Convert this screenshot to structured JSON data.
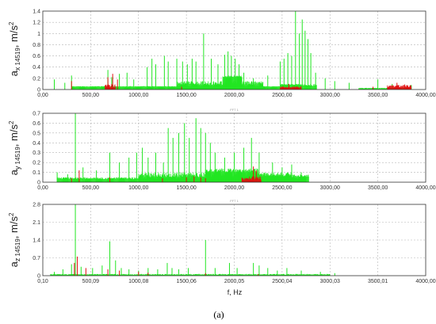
{
  "figure_caption": "(a)",
  "x_axis_label": "f, Hz",
  "colors": {
    "green": "#22e622",
    "red": "#e01010",
    "grid": "#b5b5b5",
    "frame": "#333333"
  },
  "chart_data": [
    {
      "type": "bar",
      "panel_label": "",
      "ylabel": {
        "base": "a",
        "sub1": "x",
        "sub2": "14519",
        "unit": ", m/s",
        "sup": "2"
      },
      "xlim": [
        0,
        4000
      ],
      "ylim": [
        0,
        1.4
      ],
      "xticks": [
        "0,00",
        "500,00",
        "1000,00",
        "1500,00",
        "2000,00",
        "2500,00",
        "3000,00",
        "3500,00",
        "4000,00"
      ],
      "yticks": [
        "0",
        "0.2",
        "0.4",
        "0.6",
        "0.8",
        "1",
        "1.2",
        "1.4"
      ],
      "series": [
        {
          "color": "green",
          "bands": [
            [
              300,
              2500,
              0.05,
              0.06
            ],
            [
              1400,
              2300,
              0.08,
              0.15
            ],
            [
              1880,
              2080,
              0.22,
              0.25
            ],
            [
              2480,
              2700,
              0.08,
              0.1
            ],
            [
              2700,
              2860,
              0.06,
              0.1
            ],
            [
              3300,
              3800,
              0.02,
              0.03
            ]
          ],
          "peaks": [
            [
              120,
              0.18
            ],
            [
              230,
              0.12
            ],
            [
              300,
              0.25
            ],
            [
              680,
              0.35
            ],
            [
              720,
              0.22
            ],
            [
              800,
              0.28
            ],
            [
              880,
              0.3
            ],
            [
              950,
              0.18
            ],
            [
              1090,
              0.4
            ],
            [
              1140,
              0.55
            ],
            [
              1180,
              0.45
            ],
            [
              1270,
              0.6
            ],
            [
              1310,
              0.5
            ],
            [
              1400,
              0.55
            ],
            [
              1460,
              0.5
            ],
            [
              1510,
              0.45
            ],
            [
              1560,
              0.55
            ],
            [
              1600,
              0.5
            ],
            [
              1680,
              1.0
            ],
            [
              1760,
              0.55
            ],
            [
              1830,
              0.45
            ],
            [
              1900,
              0.62
            ],
            [
              1935,
              0.68
            ],
            [
              1970,
              0.6
            ],
            [
              2010,
              0.55
            ],
            [
              2050,
              0.45
            ],
            [
              2100,
              0.3
            ],
            [
              2200,
              0.2
            ],
            [
              2350,
              0.25
            ],
            [
              2480,
              0.5
            ],
            [
              2520,
              0.55
            ],
            [
              2560,
              0.65
            ],
            [
              2600,
              0.6
            ],
            [
              2640,
              1.4
            ],
            [
              2680,
              1.0
            ],
            [
              2710,
              1.25
            ],
            [
              2740,
              1.05
            ],
            [
              2770,
              0.9
            ],
            [
              2800,
              0.65
            ],
            [
              2850,
              0.3
            ],
            [
              2950,
              0.2
            ],
            [
              3050,
              0.15
            ],
            [
              3200,
              0.12
            ],
            [
              3500,
              0.18
            ],
            [
              3650,
              0.1
            ],
            [
              3850,
              0.08
            ]
          ]
        },
        {
          "color": "red",
          "bands": [
            [
              650,
              760,
              0.02,
              0.1
            ],
            [
              2480,
              2700,
              0.02,
              0.06
            ],
            [
              3600,
              3850,
              0.04,
              0.08
            ]
          ],
          "peaks": [
            [
              300,
              0.15
            ],
            [
              680,
              0.22
            ],
            [
              730,
              0.28
            ],
            [
              780,
              0.18
            ],
            [
              1450,
              0.05
            ],
            [
              2570,
              0.1
            ],
            [
              3450,
              0.05
            ],
            [
              3700,
              0.12
            ],
            [
              3780,
              0.09
            ]
          ]
        }
      ]
    },
    {
      "type": "bar",
      "panel_label": "FFT 1",
      "ylabel": {
        "base": "a",
        "sub1": "y",
        "sub2": "14519",
        "unit": ", m/s",
        "sup": "2"
      },
      "xlim": [
        0,
        4000
      ],
      "ylim": [
        0,
        0.7
      ],
      "xticks": [
        "0,00",
        "500,00",
        "1000,00",
        "1500,00",
        "2000,00",
        "2500,00",
        "3000,00",
        "3500,00",
        "4000,00"
      ],
      "yticks": [
        "0",
        "0.1",
        "0.2",
        "0.3",
        "0.4",
        "0.5",
        "0.6",
        "0.7"
      ],
      "series": [
        {
          "color": "green",
          "bands": [
            [
              150,
              2750,
              0.03,
              0.05
            ],
            [
              1000,
              2600,
              0.05,
              0.1
            ],
            [
              1700,
              2250,
              0.1,
              0.14
            ],
            [
              2250,
              2780,
              0.05,
              0.08
            ]
          ],
          "peaks": [
            [
              150,
              0.1
            ],
            [
              260,
              0.08
            ],
            [
              340,
              0.7
            ],
            [
              420,
              0.15
            ],
            [
              560,
              0.12
            ],
            [
              700,
              0.3
            ],
            [
              800,
              0.2
            ],
            [
              900,
              0.25
            ],
            [
              980,
              0.3
            ],
            [
              1040,
              0.35
            ],
            [
              1100,
              0.25
            ],
            [
              1180,
              0.3
            ],
            [
              1260,
              0.2
            ],
            [
              1310,
              0.55
            ],
            [
              1360,
              0.45
            ],
            [
              1420,
              0.5
            ],
            [
              1480,
              0.6
            ],
            [
              1530,
              0.45
            ],
            [
              1600,
              0.65
            ],
            [
              1650,
              0.55
            ],
            [
              1700,
              0.5
            ],
            [
              1750,
              0.4
            ],
            [
              1800,
              0.3
            ],
            [
              1900,
              0.25
            ],
            [
              2000,
              0.3
            ],
            [
              2100,
              0.35
            ],
            [
              2180,
              0.45
            ],
            [
              2260,
              0.3
            ],
            [
              2400,
              0.2
            ],
            [
              2500,
              0.15
            ],
            [
              2600,
              0.18
            ],
            [
              2700,
              0.1
            ]
          ]
        },
        {
          "color": "red",
          "bands": [
            [
              2080,
              2280,
              0.02,
              0.06
            ]
          ],
          "peaks": [
            [
              300,
              0.04
            ],
            [
              380,
              0.12
            ],
            [
              700,
              0.05
            ],
            [
              1250,
              0.04
            ],
            [
              1500,
              0.05
            ],
            [
              1580,
              0.06
            ],
            [
              1650,
              0.05
            ],
            [
              1700,
              0.04
            ],
            [
              2200,
              0.16
            ],
            [
              2230,
              0.12
            ]
          ]
        }
      ]
    },
    {
      "type": "bar",
      "panel_label": "FFT 1",
      "ylabel": {
        "base": "a",
        "sub1": "z",
        "sub2": "14519",
        "unit": ", m/s",
        "sup": "2"
      },
      "xlim": [
        0,
        4000
      ],
      "ylim": [
        0,
        2.8
      ],
      "xticks": [
        "0,10",
        "500,09",
        "1000,08",
        "1500,06",
        "2000,05",
        "2500,04",
        "3000,03",
        "3500,01",
        "4000,00"
      ],
      "yticks": [
        "0",
        "0.7",
        "1.4",
        "2.1",
        "2.8"
      ],
      "series": [
        {
          "color": "green",
          "bands": [
            [
              80,
              3000,
              0.03,
              0.07
            ]
          ],
          "peaks": [
            [
              120,
              0.15
            ],
            [
              210,
              0.25
            ],
            [
              300,
              0.45
            ],
            [
              340,
              2.8
            ],
            [
              400,
              0.35
            ],
            [
              520,
              0.3
            ],
            [
              620,
              0.4
            ],
            [
              700,
              1.35
            ],
            [
              760,
              0.6
            ],
            [
              820,
              0.3
            ],
            [
              900,
              0.25
            ],
            [
              1000,
              0.2
            ],
            [
              1100,
              0.3
            ],
            [
              1200,
              0.25
            ],
            [
              1300,
              0.5
            ],
            [
              1350,
              0.3
            ],
            [
              1420,
              0.25
            ],
            [
              1520,
              0.3
            ],
            [
              1700,
              1.4
            ],
            [
              1800,
              0.3
            ],
            [
              1950,
              0.5
            ],
            [
              2030,
              0.3
            ],
            [
              2200,
              0.5
            ],
            [
              2260,
              0.4
            ],
            [
              2350,
              0.3
            ],
            [
              2450,
              0.2
            ],
            [
              2550,
              0.3
            ],
            [
              2700,
              0.2
            ],
            [
              2900,
              0.15
            ],
            [
              3050,
              0.1
            ]
          ]
        },
        {
          "color": "red",
          "bands": [],
          "peaks": [
            [
              330,
              0.5
            ],
            [
              360,
              0.75
            ],
            [
              450,
              0.3
            ],
            [
              680,
              0.25
            ],
            [
              800,
              0.2
            ],
            [
              1000,
              0.15
            ],
            [
              1100,
              0.12
            ],
            [
              1700,
              0.1
            ],
            [
              2250,
              0.06
            ]
          ]
        }
      ]
    }
  ]
}
